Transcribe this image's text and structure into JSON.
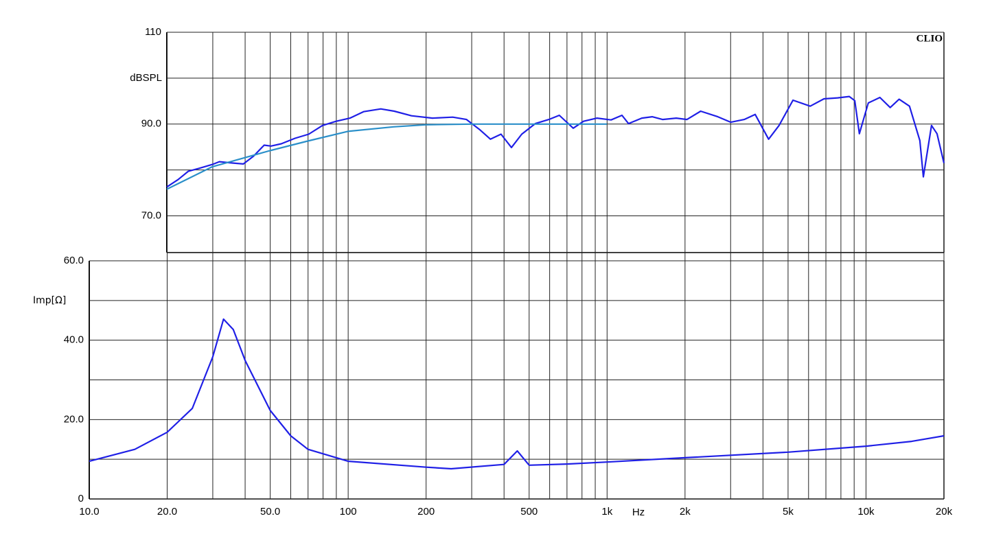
{
  "chart_data": [
    {
      "type": "line",
      "watermark": "CLIO",
      "ylabel": "dBSPL",
      "xlim": [
        20,
        20000
      ],
      "log_x": true,
      "ylim": [
        62,
        110
      ],
      "yticks": [
        110,
        {
          "value": 90,
          "label": "90.0"
        },
        {
          "value": 70,
          "label": "70.0"
        }
      ],
      "minor_yticks": [
        100,
        80
      ],
      "series": [
        {
          "color": "#1f1fe6",
          "x": [
            20,
            22.1,
            24.2,
            26.5,
            30,
            31.9,
            36.1,
            39.5,
            43.2,
            47.5,
            50.5,
            55.3,
            62.5,
            70.6,
            79.8,
            90.1,
            101.9,
            115,
            134,
            151,
            176,
            212,
            254,
            287,
            324,
            355,
            390,
            428,
            469,
            529,
            597,
            655,
            741,
            812,
            916,
            1038,
            1143,
            1211,
            1364,
            1495,
            1640,
            1852,
            2037,
            2300,
            2680,
            3008,
            3390,
            3734,
            4209,
            4618,
            5226,
            6092,
            6882,
            7774,
            8623,
            9051,
            9431,
            10208,
            11320,
            12400,
            13430,
            14720,
            16140,
            16650,
            17910,
            18800,
            20000
          ],
          "values": [
            76.3,
            77.9,
            79.7,
            80.3,
            81.2,
            81.8,
            81.5,
            81.3,
            83,
            85.4,
            85.2,
            85.7,
            86.9,
            87.8,
            89.7,
            90.6,
            91.3,
            92.7,
            93.3,
            92.8,
            91.8,
            91.3,
            91.5,
            91,
            88.7,
            86.7,
            87.8,
            84.9,
            87.8,
            90.1,
            91,
            91.9,
            89.1,
            90.6,
            91.3,
            90.9,
            91.9,
            90.1,
            91.3,
            91.6,
            91,
            91.3,
            91,
            92.8,
            91.6,
            90.4,
            91,
            92.1,
            86.7,
            89.7,
            95.2,
            93.9,
            95.5,
            95.7,
            96,
            95.1,
            87.9,
            94.6,
            95.8,
            93.6,
            95.4,
            93.9,
            86.4,
            78.5,
            89.7,
            87.9,
            81.5
          ]
        },
        {
          "color": "#2a8fc9",
          "x": [
            20,
            30,
            50,
            70,
            100,
            150,
            200,
            300,
            500,
            1000
          ],
          "values": [
            75.8,
            80.7,
            84.2,
            86.3,
            88.4,
            89.4,
            89.85,
            90,
            90,
            90
          ]
        }
      ]
    },
    {
      "type": "line",
      "ylabel": "Imp[Ω]",
      "xlabel": "Hz",
      "xlim": [
        10,
        20000
      ],
      "log_x": true,
      "xticks": [
        {
          "value": 10,
          "label": "10.0"
        },
        {
          "value": 20,
          "label": "20.0"
        },
        {
          "value": 50,
          "label": "50.0"
        },
        100,
        200,
        500,
        {
          "value": 1000,
          "label": "1k"
        },
        {
          "value": 2000,
          "label": "2k"
        },
        {
          "value": 5000,
          "label": "5k"
        },
        {
          "value": 10000,
          "label": "10k"
        },
        {
          "value": 20000,
          "label": "20k"
        }
      ],
      "x_grid": [
        30,
        40,
        60,
        70,
        80,
        90,
        300,
        400,
        600,
        700,
        800,
        900,
        3000,
        4000,
        6000,
        7000,
        8000,
        9000
      ],
      "ylim": [
        0,
        60
      ],
      "yticks": [
        0,
        {
          "value": 20,
          "label": "20.0"
        },
        {
          "value": 40,
          "label": "40.0"
        },
        {
          "value": 60,
          "label": "60.0"
        }
      ],
      "minor_yticks": [
        10,
        30,
        50
      ],
      "series": [
        {
          "color": "#1f1fe6",
          "x": [
            10,
            15,
            20,
            25,
            30,
            33,
            36,
            40,
            50,
            60,
            70,
            100,
            200,
            250,
            400,
            450,
            500,
            700,
            1000,
            2000,
            5000,
            10000,
            15000,
            20000
          ],
          "values": [
            9.5,
            12.5,
            16.8,
            22.8,
            35.8,
            45.3,
            42.7,
            34.9,
            22.3,
            15.9,
            12.5,
            9.5,
            8,
            7.6,
            8.7,
            12.1,
            8.5,
            8.8,
            9.3,
            10.4,
            11.8,
            13.3,
            14.5,
            15.9
          ]
        }
      ]
    }
  ]
}
